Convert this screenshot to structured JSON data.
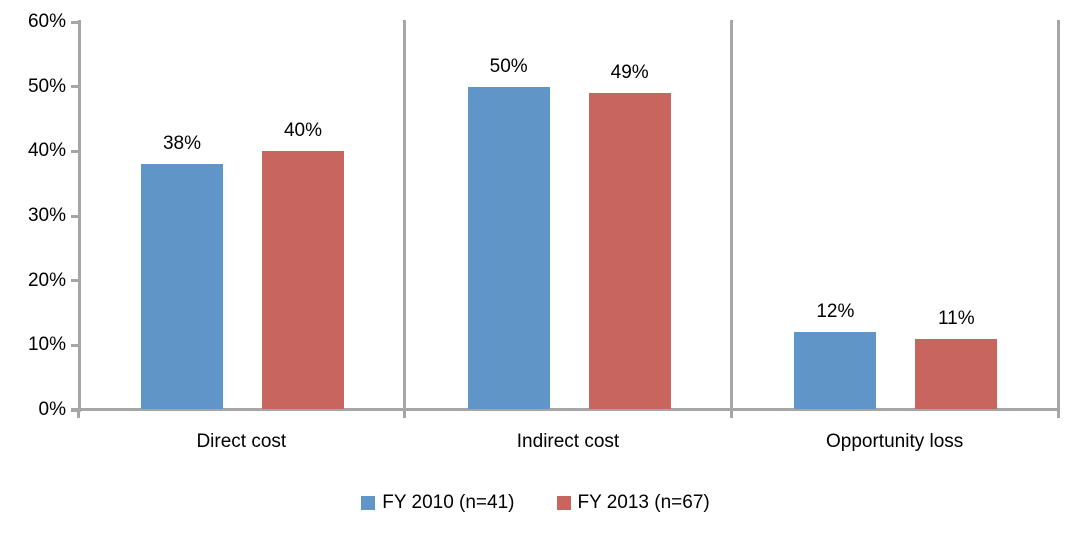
{
  "chart_data": {
    "type": "bar",
    "title": "",
    "categories": [
      "Direct cost",
      "Indirect cost",
      "Opportunity loss"
    ],
    "series": [
      {
        "name": "FY 2010 (n=41)",
        "color": "#6095C8",
        "values": [
          38,
          50,
          12
        ],
        "value_labels": [
          "38%",
          "50%",
          "12%"
        ]
      },
      {
        "name": "FY 2013 (n=67)",
        "color": "#C9655F",
        "values": [
          40,
          49,
          11
        ],
        "value_labels": [
          "40%",
          "49%",
          "11%"
        ]
      }
    ],
    "xlabel": "",
    "ylabel": "",
    "ylim": [
      0,
      60
    ],
    "yticks": [
      0,
      10,
      20,
      30,
      40,
      50,
      60
    ],
    "ytick_labels": [
      "0%",
      "10%",
      "20%",
      "30%",
      "40%",
      "50%",
      "60%"
    ],
    "grid": false,
    "legend_position": "bottom",
    "axis_color": "#A6A6A6",
    "label_color": "#000000"
  }
}
